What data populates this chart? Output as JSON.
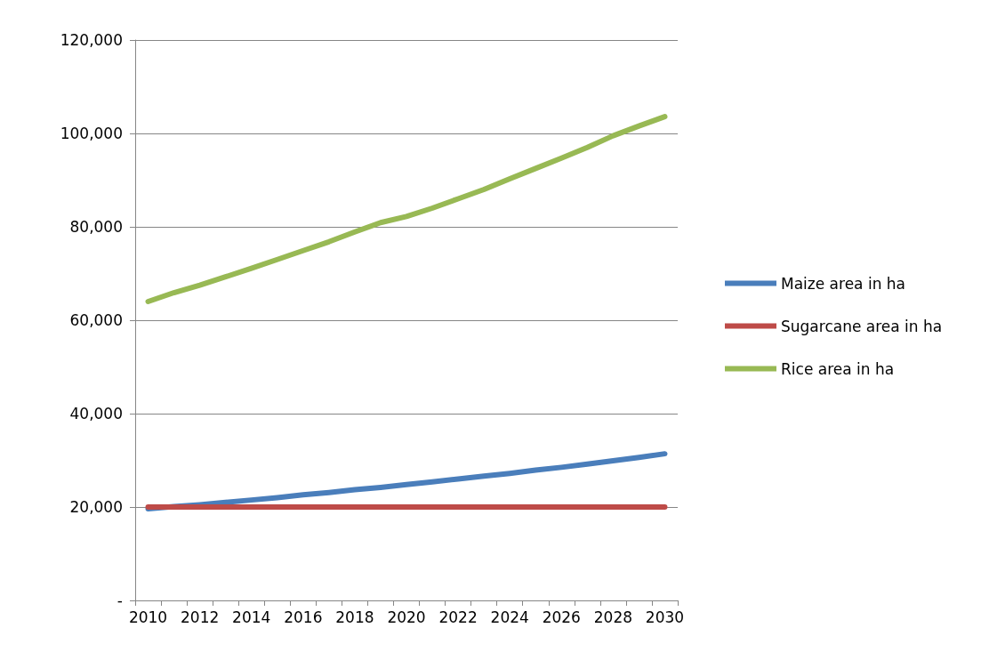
{
  "chart_data": {
    "type": "line",
    "categories": [
      "2010",
      null,
      "2012",
      null,
      "2014",
      null,
      "2016",
      null,
      "2018",
      null,
      "2020",
      null,
      "2022",
      null,
      "2024",
      null,
      "2026",
      null,
      "2028",
      null,
      "2030"
    ],
    "series": [
      {
        "name": "Maize area in ha",
        "color": "#4a7ebb",
        "values": [
          19600,
          20100,
          20500,
          21000,
          21500,
          22000,
          22600,
          23100,
          23700,
          24200,
          24800,
          25400,
          26000,
          26600,
          27200,
          27900,
          28500,
          29200,
          29900,
          30600,
          31400
        ]
      },
      {
        "name": "Sugarcane area in ha",
        "color": "#be4b48",
        "values": [
          20000,
          20000,
          20000,
          20000,
          20000,
          20000,
          20000,
          20000,
          20000,
          20000,
          20000,
          20000,
          20000,
          20000,
          20000,
          20000,
          20000,
          20000,
          20000,
          20000,
          20000
        ]
      },
      {
        "name": "Rice area in ha",
        "color": "#98b954",
        "values": [
          64000,
          65900,
          67500,
          69300,
          71100,
          73000,
          74900,
          76800,
          78900,
          80900,
          82200,
          84000,
          86000,
          88000,
          90300,
          92500,
          94700,
          97000,
          99500,
          101600,
          103600
        ]
      }
    ],
    "ylim": [
      0,
      120000
    ],
    "yticks": [
      {
        "value": 0,
        "label": "-"
      },
      {
        "value": 20000,
        "label": "20,000"
      },
      {
        "value": 40000,
        "label": "40,000"
      },
      {
        "value": 60000,
        "label": "60,000"
      },
      {
        "value": 80000,
        "label": "80,000"
      },
      {
        "value": 100000,
        "label": "100,000"
      },
      {
        "value": 120000,
        "label": "120,000"
      }
    ],
    "grid": "y",
    "legend": "right",
    "marker": "none",
    "line_style": "solid"
  }
}
